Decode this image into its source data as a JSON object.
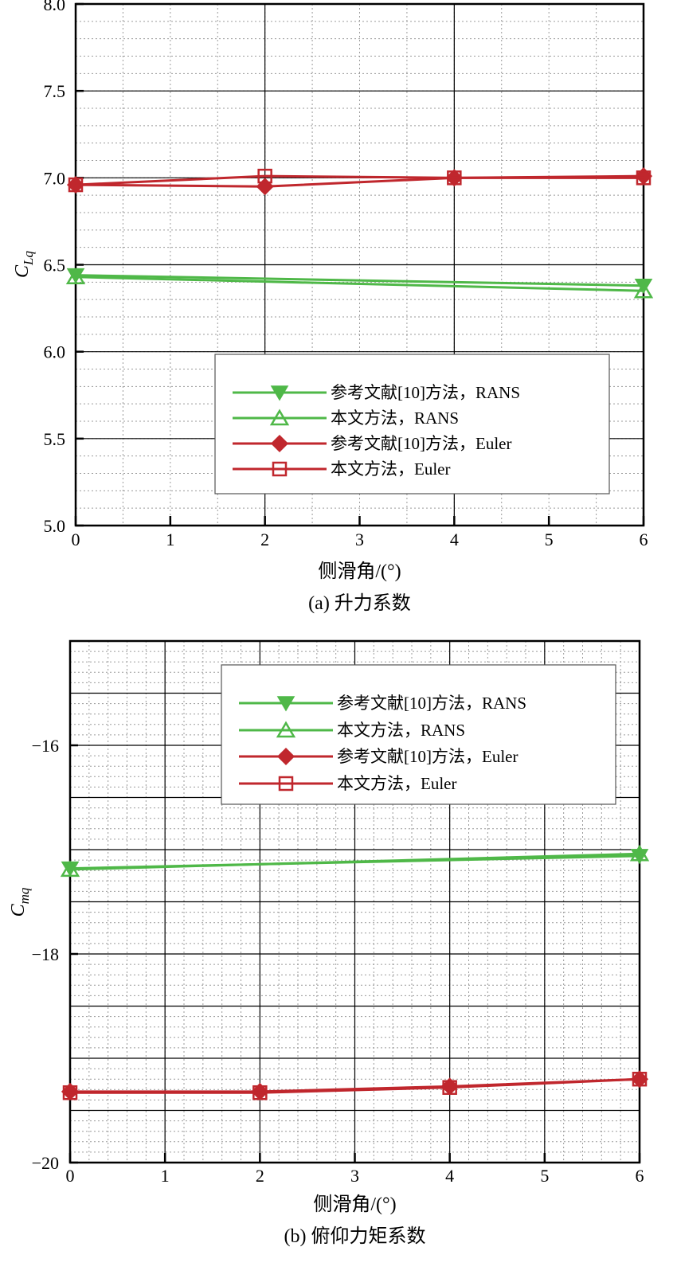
{
  "colors": {
    "green": "#4fb848",
    "red": "#c0272d",
    "grid_major": "#000000",
    "grid_minor": "#9a9a9a"
  },
  "chart_data": [
    {
      "type": "line",
      "caption": "(a) 升力系数",
      "xlabel": "侧滑角/(°)",
      "ylabel": "CLq",
      "ylabel_main": "C",
      "ylabel_sub": "Lq",
      "xlim": [
        0,
        6
      ],
      "ylim": [
        5.0,
        8.0
      ],
      "xticks": [
        0,
        1,
        2,
        3,
        4,
        5,
        6
      ],
      "yticks": [
        5.0,
        5.5,
        6.0,
        6.5,
        7.0,
        7.5,
        8.0
      ],
      "ytick_labels": [
        "5.0",
        "5.5",
        "6.0",
        "6.5",
        "7.0",
        "7.5",
        "8.0"
      ],
      "x_major_grid": [
        2,
        4,
        6
      ],
      "x_minor_step": 0.5,
      "y_major_grid": [
        5.5,
        6.0,
        6.5,
        7.0,
        7.5
      ],
      "y_minor_step": 0.1,
      "legend_position": "lower-right",
      "series": [
        {
          "name": "参考文献[10]方法，RANS",
          "color": "green",
          "marker": "triangle-down",
          "x": [
            0,
            6
          ],
          "y": [
            6.44,
            6.38
          ]
        },
        {
          "name": "本文方法，RANS",
          "color": "green",
          "marker": "triangle-up",
          "x": [
            0,
            6
          ],
          "y": [
            6.43,
            6.35
          ]
        },
        {
          "name": "参考文献[10]方法，Euler",
          "color": "red",
          "marker": "diamond",
          "x": [
            0,
            2,
            4,
            6
          ],
          "y": [
            6.96,
            6.95,
            7.0,
            7.01
          ]
        },
        {
          "name": "本文方法，Euler",
          "color": "red",
          "marker": "square",
          "x": [
            0,
            2,
            4,
            6
          ],
          "y": [
            6.96,
            7.01,
            7.0,
            7.0
          ]
        }
      ]
    },
    {
      "type": "line",
      "caption": "(b) 俯仰力矩系数",
      "xlabel": "侧滑角/(°)",
      "ylabel": "Cmq",
      "ylabel_main": "C",
      "ylabel_sub": "mq",
      "xlim": [
        0,
        6
      ],
      "ylim": [
        -20,
        -15
      ],
      "xticks": [
        0,
        1,
        2,
        3,
        4,
        5,
        6
      ],
      "yticks": [
        -20,
        -18,
        -16
      ],
      "ytick_labels": [
        "−20",
        "−18",
        "−16"
      ],
      "x_major_grid": [
        1,
        2,
        3,
        4,
        5
      ],
      "x_minor_step": 0.2,
      "y_major_grid": [
        -19.5,
        -19,
        -18.5,
        -18,
        -17.5,
        -17,
        -16.5,
        -16,
        -15.5
      ],
      "y_minor_step": 0.1,
      "legend_position": "top-right",
      "series": [
        {
          "name": "参考文献[10]方法，RANS",
          "color": "green",
          "marker": "triangle-down",
          "x": [
            0,
            6
          ],
          "y": [
            -17.18,
            -17.06
          ]
        },
        {
          "name": "本文方法，RANS",
          "color": "green",
          "marker": "triangle-up",
          "x": [
            0,
            6
          ],
          "y": [
            -17.19,
            -17.04
          ]
        },
        {
          "name": "参考文献[10]方法，Euler",
          "color": "red",
          "marker": "diamond",
          "x": [
            0,
            2,
            4,
            6
          ],
          "y": [
            -19.32,
            -19.32,
            -19.27,
            -19.2
          ]
        },
        {
          "name": "本文方法，Euler",
          "color": "red",
          "marker": "square",
          "x": [
            0,
            2,
            4,
            6
          ],
          "y": [
            -19.33,
            -19.33,
            -19.28,
            -19.2
          ]
        }
      ]
    }
  ]
}
